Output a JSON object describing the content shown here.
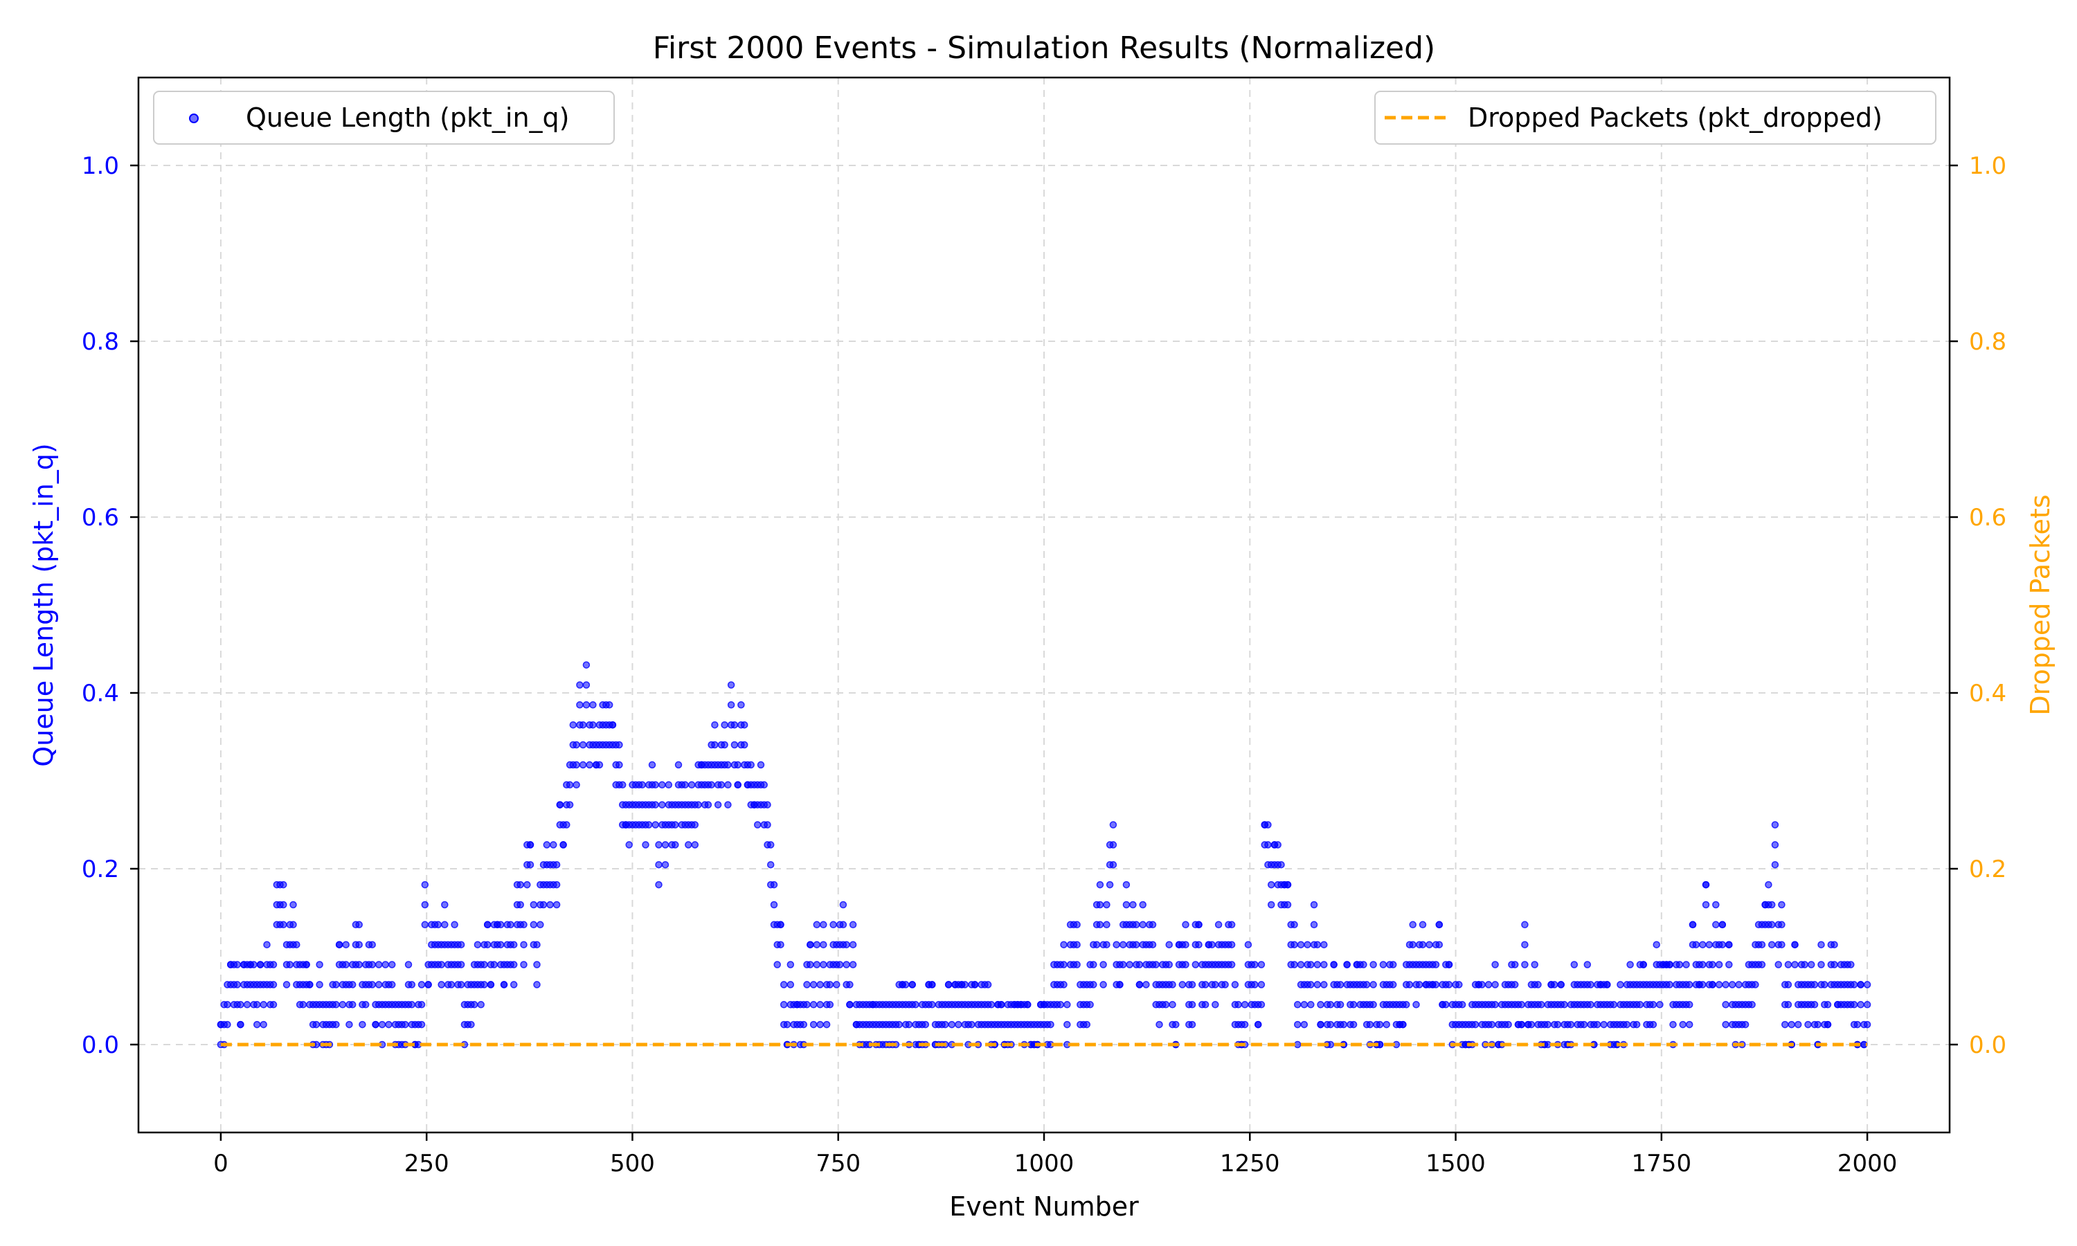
{
  "chart_data": {
    "type": "scatter",
    "title": "First 2000 Events - Simulation Results (Normalized)",
    "xlabel": "Event Number",
    "ylabel_left": "Queue Length (pkt_in_q)",
    "ylabel_right": "Dropped Packets",
    "xlim": [
      -100,
      2100
    ],
    "ylim": [
      -0.1,
      1.1
    ],
    "x_ticks": [
      0,
      250,
      500,
      750,
      1000,
      1250,
      1500,
      1750,
      2000
    ],
    "y_ticks": [
      0.0,
      0.2,
      0.4,
      0.6,
      0.8,
      1.0
    ],
    "x_tick_labels": [
      "0",
      "250",
      "500",
      "750",
      "1000",
      "1250",
      "1500",
      "1750",
      "2000"
    ],
    "y_tick_labels": [
      "0.0",
      "0.2",
      "0.4",
      "0.6",
      "0.8",
      "1.0"
    ],
    "grid": true,
    "colors": {
      "queue": "#0000ff",
      "dropped": "#ffa500",
      "left_axis": "#0000ff",
      "right_axis": "#ffa500"
    },
    "series": [
      {
        "name": "Queue Length (pkt_in_q)",
        "kind": "scatter",
        "axis": "left",
        "legend_position": "upper left",
        "envelope": {
          "x": [
            0,
            10,
            30,
            50,
            70,
            90,
            110,
            140,
            160,
            180,
            200,
            220,
            240,
            250,
            260,
            280,
            300,
            320,
            340,
            360,
            370,
            380,
            400,
            420,
            440,
            460,
            470,
            490,
            510,
            530,
            550,
            570,
            590,
            610,
            630,
            650,
            670,
            680,
            700,
            720,
            740,
            760,
            780,
            800,
            850,
            900,
            950,
            1000,
            1030,
            1050,
            1070,
            1080,
            1100,
            1130,
            1160,
            1180,
            1200,
            1220,
            1240,
            1260,
            1270,
            1290,
            1310,
            1330,
            1350,
            1380,
            1420,
            1440,
            1460,
            1480,
            1500,
            1520,
            1550,
            1580,
            1600,
            1620,
            1660,
            1680,
            1700,
            1740,
            1760,
            1780,
            1800,
            1820,
            1840,
            1860,
            1880,
            1890,
            1900,
            1920,
            1940,
            1960,
            1980,
            2000
          ],
          "max": [
            0.02,
            0.09,
            0.09,
            0.1,
            0.18,
            0.16,
            0.07,
            0.1,
            0.14,
            0.11,
            0.11,
            0.07,
            0.1,
            0.23,
            0.16,
            0.14,
            0.09,
            0.14,
            0.14,
            0.18,
            0.25,
            0.2,
            0.22,
            0.32,
            0.43,
            0.39,
            0.39,
            0.32,
            0.3,
            0.32,
            0.3,
            0.34,
            0.32,
            0.39,
            0.43,
            0.34,
            0.25,
            0.14,
            0.05,
            0.14,
            0.14,
            0.18,
            0.05,
            0.05,
            0.07,
            0.07,
            0.05,
            0.05,
            0.14,
            0.14,
            0.25,
            0.27,
            0.18,
            0.14,
            0.09,
            0.16,
            0.11,
            0.18,
            0.09,
            0.16,
            0.27,
            0.2,
            0.11,
            0.16,
            0.09,
            0.09,
            0.09,
            0.11,
            0.2,
            0.14,
            0.07,
            0.07,
            0.09,
            0.14,
            0.07,
            0.07,
            0.11,
            0.07,
            0.07,
            0.11,
            0.09,
            0.11,
            0.2,
            0.16,
            0.07,
            0.11,
            0.18,
            0.3,
            0.14,
            0.09,
            0.09,
            0.18,
            0.09,
            0.07
          ],
          "min": [
            0.0,
            0.0,
            0.02,
            0.02,
            0.07,
            0.07,
            0.0,
            0.0,
            0.02,
            0.02,
            0.0,
            0.0,
            0.0,
            0.07,
            0.09,
            0.05,
            0.0,
            0.05,
            0.07,
            0.02,
            0.09,
            0.07,
            0.11,
            0.25,
            0.3,
            0.32,
            0.27,
            0.25,
            0.2,
            0.18,
            0.23,
            0.23,
            0.25,
            0.27,
            0.3,
            0.27,
            0.18,
            0.0,
            0.0,
            0.0,
            0.0,
            0.05,
            0.0,
            0.0,
            0.0,
            0.0,
            0.0,
            0.0,
            0.0,
            0.02,
            0.07,
            0.07,
            0.07,
            0.05,
            0.0,
            0.02,
            0.0,
            0.02,
            0.0,
            0.02,
            0.11,
            0.11,
            0.0,
            0.02,
            0.0,
            0.0,
            0.0,
            0.02,
            0.07,
            0.05,
            0.0,
            0.0,
            0.0,
            0.02,
            0.0,
            0.0,
            0.0,
            0.0,
            0.0,
            0.0,
            0.0,
            0.02,
            0.07,
            0.05,
            0.0,
            0.02,
            0.07,
            0.11,
            0.0,
            0.0,
            0.0,
            0.05,
            0.0,
            0.0
          ]
        }
      },
      {
        "name": "Dropped Packets (pkt_dropped)",
        "kind": "line",
        "style": "dashed",
        "axis": "right",
        "legend_position": "upper right",
        "x": [
          0,
          2000
        ],
        "values": [
          0.0,
          0.0
        ]
      }
    ]
  }
}
